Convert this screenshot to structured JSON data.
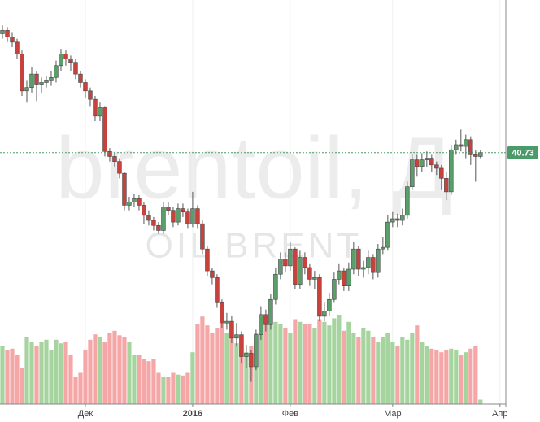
{
  "chart_data": {
    "type": "candlestick",
    "title": "brentoil, Д",
    "subtitle": "OIL BRENT",
    "open": [
      47.8,
      48.0,
      47.6,
      47.3,
      46.6,
      44.4,
      44.6,
      45.4,
      44.8,
      44.9,
      45.0,
      45.2,
      45.9,
      46.6,
      46.3,
      46.1,
      45.4,
      44.9,
      44.4,
      43.9,
      42.9,
      43.4,
      40.8,
      40.5,
      40.2,
      39.5,
      37.6,
      37.8,
      38.0,
      37.6,
      37.0,
      36.7,
      36.4,
      36.1,
      37.5,
      37.3,
      36.6,
      37.4,
      37.2,
      36.5,
      37.4,
      36.5,
      35.0,
      33.7,
      33.3,
      31.8,
      30.6,
      30.7,
      29.7,
      29.9,
      28.6,
      28.8,
      28.0,
      29.9,
      31.1,
      30.5,
      32.0,
      33.5,
      34.4,
      34.0,
      35.0,
      32.9,
      34.5,
      33.9,
      33.2,
      33.3,
      31.0,
      31.3,
      32.0,
      33.2,
      33.7,
      32.8,
      33.8,
      35.0,
      33.8,
      33.9,
      34.5,
      33.6,
      35.0,
      35.1,
      36.6,
      36.8,
      36.7,
      37.0,
      38.7,
      40.3,
      39.9,
      40.3,
      40.4,
      40.0,
      39.8,
      39.2,
      38.4,
      40.9,
      41.2,
      41.1,
      41.5,
      40.6,
      40.5
    ],
    "high": [
      48.3,
      48.2,
      47.9,
      47.5,
      46.8,
      45.0,
      45.8,
      45.6,
      45.2,
      45.3,
      45.6,
      46.2,
      46.9,
      46.8,
      46.5,
      46.3,
      45.6,
      45.1,
      44.6,
      44.1,
      43.7,
      43.5,
      41.0,
      40.7,
      40.4,
      39.6,
      38.1,
      38.3,
      38.2,
      37.8,
      37.3,
      36.9,
      36.6,
      37.8,
      37.8,
      37.5,
      37.7,
      37.7,
      37.4,
      38.4,
      37.6,
      36.7,
      35.2,
      33.9,
      33.5,
      32.0,
      31.2,
      31.0,
      30.6,
      30.1,
      29.3,
      29.0,
      30.2,
      31.6,
      31.4,
      32.3,
      33.9,
      34.8,
      34.8,
      35.4,
      35.1,
      34.9,
      34.8,
      34.1,
      33.7,
      33.5,
      31.8,
      32.4,
      33.6,
      34.1,
      33.9,
      34.2,
      35.4,
      35.2,
      34.3,
      34.9,
      34.7,
      35.3,
      35.7,
      37.0,
      37.2,
      37.1,
      37.4,
      39.0,
      40.6,
      40.6,
      40.7,
      40.8,
      40.6,
      40.2,
      40.0,
      39.6,
      41.2,
      41.5,
      42.1,
      41.8,
      41.7,
      40.9,
      40.9
    ],
    "low": [
      47.5,
      47.3,
      47.0,
      46.3,
      44.1,
      43.7,
      44.3,
      43.8,
      44.3,
      44.6,
      44.7,
      44.9,
      45.6,
      45.9,
      45.6,
      45.1,
      44.6,
      44.0,
      43.5,
      42.6,
      42.6,
      40.5,
      40.2,
      39.9,
      39.2,
      37.3,
      37.3,
      37.5,
      37.3,
      36.5,
      36.4,
      36.1,
      35.9,
      35.9,
      37.0,
      36.3,
      36.4,
      36.9,
      36.2,
      36.3,
      36.2,
      34.7,
      33.4,
      32.9,
      31.5,
      30.3,
      30.2,
      29.4,
      29.2,
      28.2,
      27.9,
      27.1,
      27.8,
      29.6,
      30.1,
      30.2,
      31.7,
      33.2,
      33.6,
      33.7,
      32.6,
      32.6,
      33.5,
      32.8,
      32.6,
      30.7,
      30.7,
      31.0,
      31.8,
      32.9,
      32.5,
      32.5,
      33.5,
      33.4,
      33.3,
      33.5,
      33.2,
      33.3,
      34.7,
      34.9,
      36.3,
      36.3,
      36.4,
      36.8,
      38.5,
      39.3,
      39.6,
      39.9,
      39.6,
      39.4,
      38.5,
      37.9,
      38.2,
      40.6,
      40.8,
      40.4,
      40.0,
      39.0,
      40.4
    ],
    "close": [
      48.0,
      47.6,
      47.3,
      46.6,
      44.4,
      44.6,
      45.4,
      44.8,
      44.9,
      45.0,
      45.2,
      45.9,
      46.6,
      46.3,
      46.1,
      45.4,
      44.9,
      44.4,
      43.9,
      42.9,
      43.4,
      40.8,
      40.5,
      40.2,
      39.5,
      37.6,
      37.8,
      38.0,
      37.6,
      37.0,
      36.7,
      36.4,
      36.1,
      37.5,
      37.3,
      36.6,
      37.4,
      37.2,
      36.5,
      37.4,
      36.5,
      35.0,
      33.7,
      33.3,
      31.8,
      30.6,
      30.7,
      29.7,
      29.9,
      28.6,
      28.8,
      28.0,
      29.9,
      31.1,
      30.5,
      32.0,
      33.5,
      34.4,
      34.0,
      35.0,
      32.9,
      34.5,
      33.9,
      33.2,
      33.3,
      31.0,
      31.3,
      32.0,
      33.2,
      33.7,
      32.8,
      33.8,
      35.0,
      33.8,
      33.9,
      34.5,
      33.6,
      35.0,
      35.1,
      36.6,
      36.8,
      36.7,
      37.0,
      38.7,
      40.3,
      39.9,
      40.3,
      40.4,
      40.0,
      39.8,
      39.2,
      38.4,
      40.9,
      41.2,
      41.1,
      41.5,
      40.6,
      40.5,
      40.73
    ],
    "volume": [
      65,
      60,
      62,
      55,
      40,
      75,
      70,
      65,
      70,
      72,
      60,
      72,
      68,
      70,
      55,
      30,
      35,
      60,
      72,
      78,
      75,
      70,
      80,
      82,
      77,
      75,
      70,
      55,
      55,
      50,
      48,
      50,
      35,
      30,
      30,
      35,
      33,
      32,
      35,
      58,
      90,
      98,
      88,
      80,
      85,
      90,
      80,
      75,
      68,
      60,
      58,
      65,
      80,
      90,
      100,
      95,
      92,
      90,
      85,
      80,
      95,
      92,
      90,
      90,
      85,
      95,
      92,
      88,
      96,
      100,
      82,
      92,
      80,
      75,
      85,
      82,
      75,
      70,
      75,
      80,
      70,
      65,
      75,
      72,
      80,
      88,
      70,
      65,
      62,
      60,
      58,
      60,
      62,
      60,
      55,
      58,
      62,
      65,
      5
    ],
    "up_color": "#5a9e6a",
    "down_color": "#c8423d",
    "volume_up_color": "#a6d49f",
    "volume_down_color": "#f5a6a6",
    "xlim": [
      -0.5,
      103.2
    ],
    "xticks": [
      {
        "value": 17,
        "label": "Дек"
      },
      {
        "value": 39,
        "label": "2016"
      },
      {
        "value": 59,
        "label": "Фев"
      },
      {
        "value": 80,
        "label": "Мар"
      },
      {
        "value": 102,
        "label": "Апр"
      }
    ],
    "ylim": [
      25,
      50
    ],
    "volume_ylim": [
      0,
      100
    ]
  }
}
